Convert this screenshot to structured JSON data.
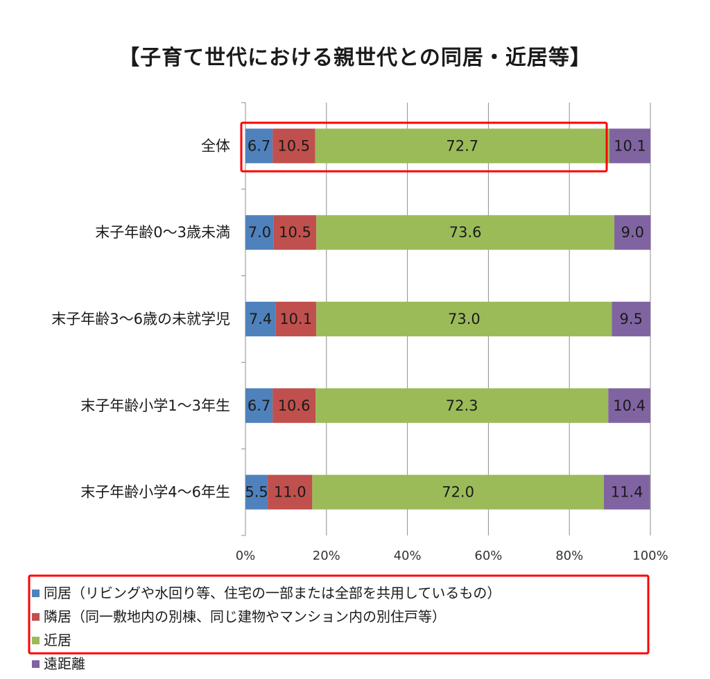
{
  "chart_data": {
    "type": "bar",
    "orientation": "horizontal",
    "stacked": true,
    "title": "【子育て世代における親世代との同居・近居等】",
    "categories": [
      "全体",
      "末子年齢0～3歳未満",
      "末子年齢3～6歳の未就学児",
      "末子年齢小学1～3年生",
      "末子年齢小学4～6年生"
    ],
    "series": [
      {
        "name": "同居（リビングや水回り等、住宅の一部または全部を共用しているもの）",
        "color": "#4f81bd",
        "values": [
          6.7,
          7.0,
          7.4,
          6.7,
          5.5
        ]
      },
      {
        "name": "隣居（同一敷地内の別棟、同じ建物やマンション内の別住戸等）",
        "color": "#c0504d",
        "values": [
          10.5,
          10.5,
          10.1,
          10.6,
          11.0
        ]
      },
      {
        "name": "近居",
        "color": "#9bbb59",
        "values": [
          72.7,
          73.6,
          73.0,
          72.3,
          72.0
        ]
      },
      {
        "name": "遠距離",
        "color": "#8064a2",
        "values": [
          10.1,
          9.0,
          9.5,
          10.4,
          11.4
        ]
      }
    ],
    "xlim": [
      0,
      100
    ],
    "xticks": [
      "0%",
      "20%",
      "40%",
      "60%",
      "80%",
      "100%"
    ],
    "grid": true,
    "legend_position": "bottom",
    "highlight_color": "#ff0000"
  }
}
